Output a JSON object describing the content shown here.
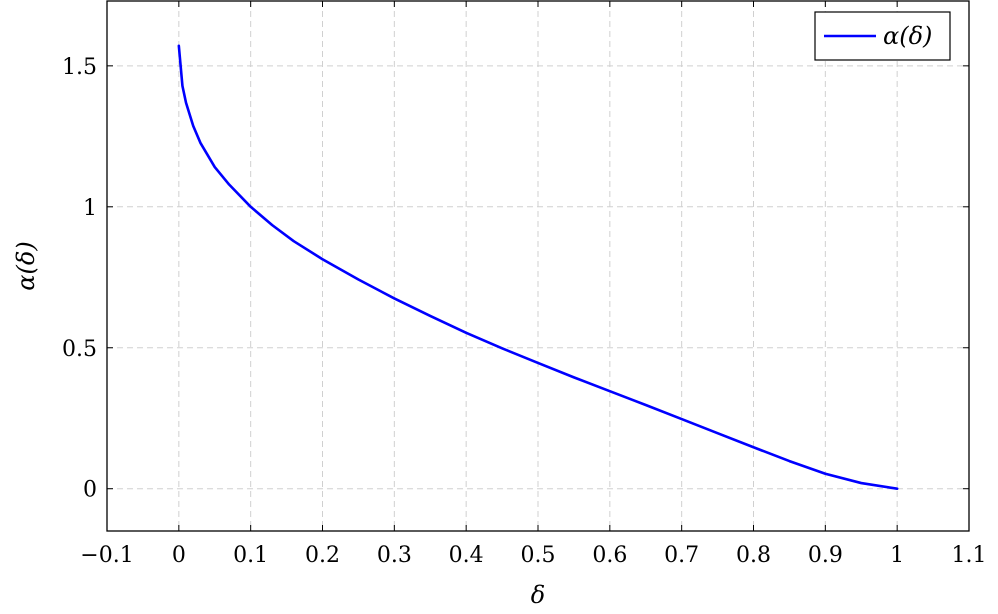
{
  "chart_data": {
    "type": "line",
    "xlabel": "δ",
    "ylabel": "α(δ)",
    "xlim": [
      -0.1,
      1.1
    ],
    "ylim": [
      -0.15,
      1.73
    ],
    "xticks": [
      "−0.1",
      "0",
      "0.1",
      "0.2",
      "0.3",
      "0.4",
      "0.5",
      "0.6",
      "0.7",
      "0.8",
      "0.9",
      "1",
      "1.1"
    ],
    "xtick_values": [
      -0.1,
      0,
      0.1,
      0.2,
      0.3,
      0.4,
      0.5,
      0.6,
      0.7,
      0.8,
      0.9,
      1,
      1.1
    ],
    "yticks": [
      "0",
      "0.5",
      "1",
      "1.5"
    ],
    "ytick_values": [
      0,
      0.5,
      1,
      1.5
    ],
    "grid": true,
    "legend_position": "top-right",
    "series": [
      {
        "name": "α(δ)",
        "color": "#0000ff",
        "x": [
          0.0,
          0.005,
          0.01,
          0.02,
          0.03,
          0.05,
          0.07,
          0.1,
          0.13,
          0.16,
          0.2,
          0.25,
          0.3,
          0.35,
          0.4,
          0.45,
          0.5,
          0.55,
          0.6,
          0.65,
          0.7,
          0.75,
          0.8,
          0.85,
          0.9,
          0.95,
          1.0
        ],
        "y": [
          1.571,
          1.429,
          1.369,
          1.287,
          1.227,
          1.141,
          1.079,
          1.0,
          0.935,
          0.878,
          0.814,
          0.742,
          0.675,
          0.613,
          0.553,
          0.498,
          0.446,
          0.395,
          0.346,
          0.297,
          0.247,
          0.197,
          0.147,
          0.098,
          0.053,
          0.02,
          0.0
        ]
      }
    ]
  }
}
